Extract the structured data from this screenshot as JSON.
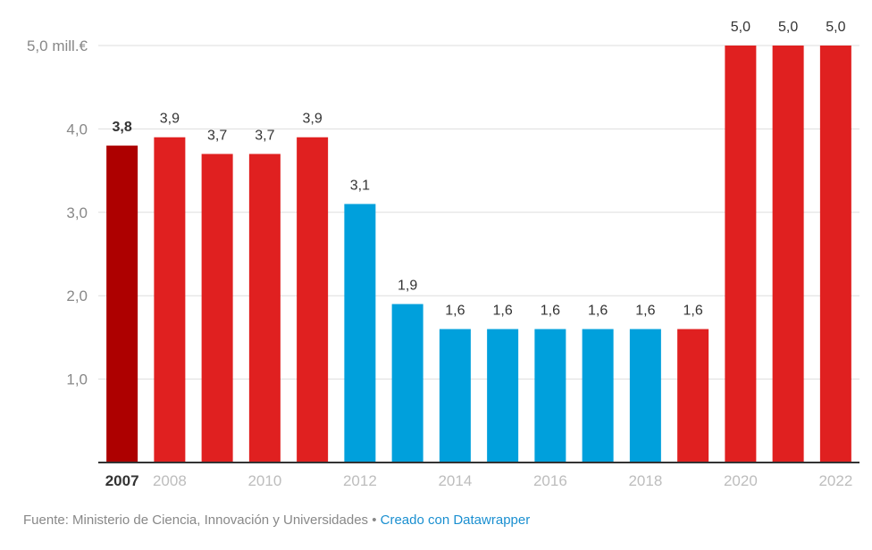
{
  "chart_data": {
    "type": "bar",
    "title": "",
    "xlabel": "",
    "ylabel": "",
    "y_unit_label": "5,0 mill.€",
    "ylim": [
      0,
      5
    ],
    "grid": true,
    "yticks": [
      {
        "value": 1,
        "label": "1,0"
      },
      {
        "value": 2,
        "label": "2,0"
      },
      {
        "value": 3,
        "label": "3,0"
      },
      {
        "value": 4,
        "label": "4,0"
      },
      {
        "value": 5,
        "label": "5,0 mill.€"
      }
    ],
    "categories": [
      "2007",
      "2008",
      "2009",
      "2010",
      "2011",
      "2012",
      "2013",
      "2014",
      "2015",
      "2016",
      "2017",
      "2018",
      "2019",
      "2020",
      "2021",
      "2022"
    ],
    "xtick_labels": [
      "2007",
      "2008",
      "",
      "2010",
      "",
      "2012",
      "",
      "2014",
      "",
      "2016",
      "",
      "2018",
      "",
      "2020",
      "",
      "2022"
    ],
    "values": [
      3.8,
      3.9,
      3.7,
      3.7,
      3.9,
      3.1,
      1.9,
      1.6,
      1.6,
      1.6,
      1.6,
      1.6,
      1.6,
      5.0,
      5.0,
      5.0
    ],
    "data_labels": [
      "3,8",
      "3,9",
      "3,7",
      "3,7",
      "3,9",
      "3,1",
      "1,9",
      "1,6",
      "1,6",
      "1,6",
      "1,6",
      "1,6",
      "1,6",
      "5,0",
      "5,0",
      "5,0"
    ],
    "bar_colors": [
      "#ad0000",
      "#e02020",
      "#e02020",
      "#e02020",
      "#e02020",
      "#00a0dc",
      "#00a0dc",
      "#00a0dc",
      "#00a0dc",
      "#00a0dc",
      "#00a0dc",
      "#00a0dc",
      "#e02020",
      "#e02020",
      "#e02020",
      "#e02020"
    ],
    "highlighted_index": 0
  },
  "footer": {
    "source": "Fuente: Ministerio de Ciencia, Innovación y Universidades",
    "separator": " • ",
    "credit": "Creado con Datawrapper"
  }
}
